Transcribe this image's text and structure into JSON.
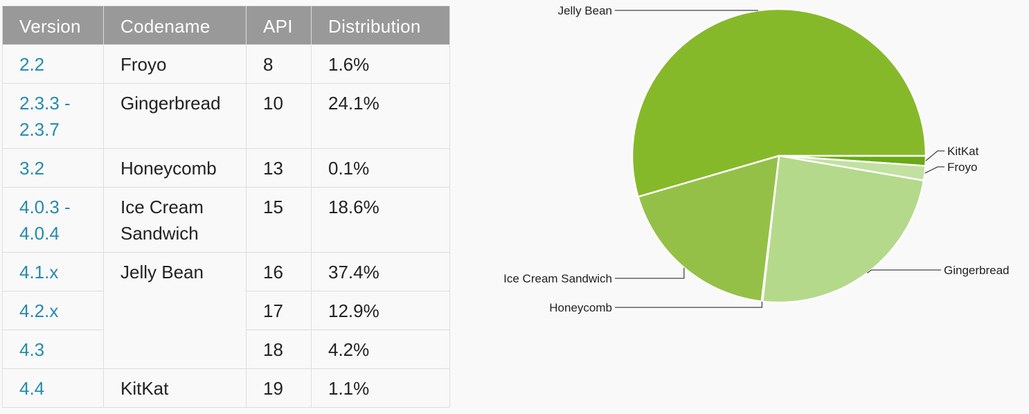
{
  "table": {
    "headers": {
      "version": "Version",
      "codename": "Codename",
      "api": "API",
      "distribution": "Distribution"
    },
    "rows": [
      {
        "version_lines": [
          "2.2"
        ],
        "codename": "Froyo",
        "api": "8",
        "distribution": "1.6%"
      },
      {
        "version_lines": [
          "2.3.3 -",
          "2.3.7"
        ],
        "codename": "Gingerbread",
        "api": "10",
        "distribution": "24.1%"
      },
      {
        "version_lines": [
          "3.2"
        ],
        "codename": "Honeycomb",
        "api": "13",
        "distribution": "0.1%"
      },
      {
        "version_lines": [
          "4.0.3 -",
          "4.0.4"
        ],
        "codename": "Ice Cream Sandwich",
        "api": "15",
        "distribution": "18.6%"
      },
      {
        "version_lines": [
          "4.1.x"
        ],
        "codename": "Jelly Bean",
        "api": "16",
        "distribution": "37.4%"
      },
      {
        "version_lines": [
          "4.2.x"
        ],
        "codename": "",
        "api": "17",
        "distribution": "12.9%"
      },
      {
        "version_lines": [
          "4.3"
        ],
        "codename": "",
        "api": "18",
        "distribution": "4.2%"
      },
      {
        "version_lines": [
          "4.4"
        ],
        "codename": "KitKat",
        "api": "19",
        "distribution": "1.1%"
      }
    ],
    "colors": {
      "header_bg": "#999999",
      "header_text": "#ffffff",
      "version_text": "#258aaf",
      "cell_text": "#222222",
      "border": "#dddddd"
    }
  },
  "chart_data": {
    "type": "pie",
    "labels": [
      "KitKat",
      "Froyo",
      "Gingerbread",
      "Honeycomb",
      "Ice Cream Sandwich",
      "Jelly Bean"
    ],
    "values": [
      1.1,
      1.6,
      24.1,
      0.1,
      18.6,
      54.5
    ],
    "colors": [
      "#6aa815",
      "#c2e1a1",
      "#b5d98a",
      "#a6cf70",
      "#95c048",
      "#86b92a"
    ],
    "start_angle_deg": 0,
    "direction": "clockwise",
    "background": "#f9f9f9"
  }
}
